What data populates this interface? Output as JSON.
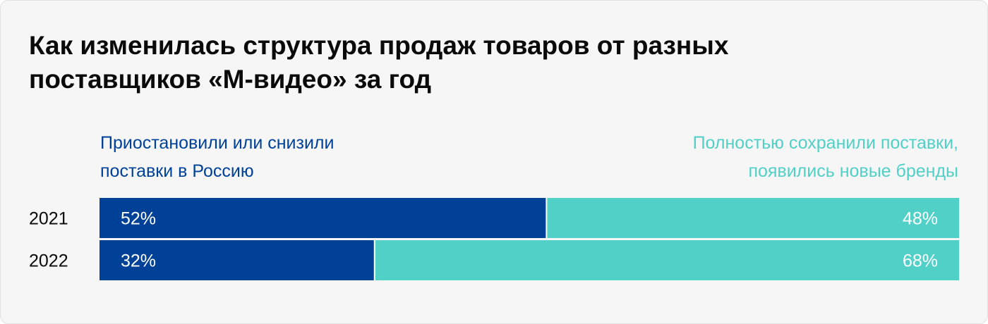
{
  "title": "Как изменилась структура продаж товаров от разных\nпоставщиков «М-видео» за год",
  "colors": {
    "dark_blue": "#004198",
    "teal": "#50d0c6",
    "background": "#f6f6f7",
    "text": "#0a0a0a"
  },
  "chart_data": {
    "type": "bar",
    "stacked": true,
    "orientation": "horizontal",
    "categories": [
      "2021",
      "2022"
    ],
    "series": [
      {
        "name": "Приостановили или снизили\nпоставки в Россию",
        "values": [
          52,
          32
        ],
        "labels": [
          "52%",
          "32%"
        ],
        "color": "#004198"
      },
      {
        "name": "Полностью сохранили поставки,\nпоявились новые бренды",
        "values": [
          48,
          68
        ],
        "labels": [
          "48%",
          "68%"
        ],
        "color": "#50d0c6"
      }
    ],
    "xlim": [
      0,
      100
    ],
    "grid": false,
    "legend_placement": "top"
  }
}
